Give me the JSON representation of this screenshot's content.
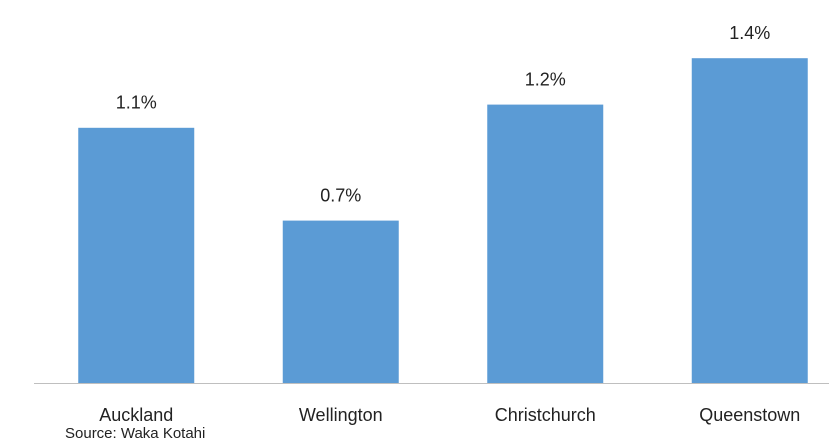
{
  "chart_data": {
    "type": "bar",
    "categories": [
      "Auckland",
      "Wellington",
      "Christchurch",
      "Queenstown"
    ],
    "values": [
      1.1,
      0.7,
      1.2,
      1.4
    ],
    "value_labels": [
      "1.1%",
      "0.7%",
      "1.2%",
      "1.4%"
    ],
    "color": "#5b9bd5",
    "ylim": [
      0,
      1.5
    ],
    "source": "Source: Waka Kotahi"
  }
}
